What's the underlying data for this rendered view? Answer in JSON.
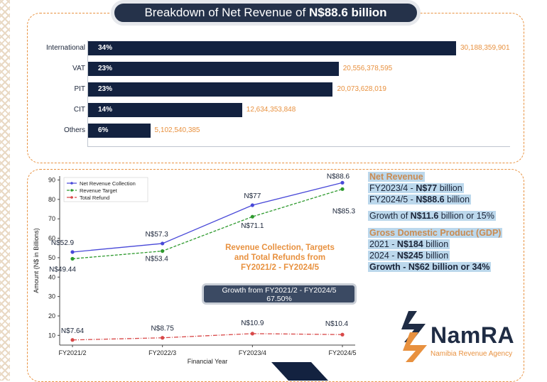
{
  "header": {
    "title_prefix": "Breakdown of Net Revenue of ",
    "title_bold": "N$88.6 billion"
  },
  "breakdown": {
    "items": [
      {
        "label": "International",
        "pct": "34%",
        "value": "30,188,359,901",
        "amount": 30188359901
      },
      {
        "label": "VAT",
        "pct": "23%",
        "value": "20,556,378,595",
        "amount": 20556378595
      },
      {
        "label": "PIT",
        "pct": "23%",
        "value": "20,073,628,019",
        "amount": 20073628019
      },
      {
        "label": "CIT",
        "pct": "14%",
        "value": "12,634,353,848",
        "amount": 12634353848
      },
      {
        "label": "Others",
        "pct": "6%",
        "value": "5,102,540,385",
        "amount": 5102540385
      }
    ],
    "bar_color": "#132240",
    "value_color": "#e8913f"
  },
  "chart_data": [
    {
      "type": "bar",
      "orientation": "horizontal",
      "categories": [
        "International",
        "VAT",
        "PIT",
        "CIT",
        "Others"
      ],
      "values": [
        30188359901,
        20556378595,
        20073628019,
        12634353848,
        5102540385
      ],
      "percent_labels": [
        "34%",
        "23%",
        "23%",
        "14%",
        "6%"
      ],
      "title": "Breakdown of Net Revenue of N$88.6 billion"
    },
    {
      "type": "line",
      "x": [
        "FY2021/2",
        "FY2022/3",
        "FY2023/4",
        "FY2024/5"
      ],
      "xlabel": "Financial Year",
      "ylabel": "Amount (N$ in Billions)",
      "ylim": [
        5,
        92
      ],
      "yticks": [
        10,
        20,
        30,
        40,
        50,
        60,
        70,
        80,
        90
      ],
      "grid": false,
      "legend": "top-left",
      "series": [
        {
          "name": "Net Revenue Collection",
          "values": [
            52.9,
            57.3,
            77,
            88.6
          ],
          "labels": [
            "N$52.9",
            "N$57.3",
            "N$77",
            "N$88.6"
          ],
          "color": "#4848d8",
          "style": "solid"
        },
        {
          "name": "Revenue Target",
          "values": [
            49.44,
            53.4,
            71.1,
            85.3
          ],
          "labels": [
            "N$49.44",
            "N$53.4",
            "N$71.1",
            "N$85.3"
          ],
          "color": "#2e9a2e",
          "style": "dashed"
        },
        {
          "name": "Total Refund",
          "values": [
            7.64,
            8.75,
            10.9,
            10.4
          ],
          "labels": [
            "N$7.64",
            "N$8.75",
            "N$10.9",
            "N$10.4"
          ],
          "color": "#d84848",
          "style": "dashdot"
        }
      ]
    }
  ],
  "annotations": {
    "chart_title_lines": [
      "Revenue Collection, Targets",
      "and Total Refunds from",
      "FY2021/2 - FY2024/5"
    ],
    "growth_box_line1": "Growth from FY2021/2 - FY2024/5",
    "growth_box_line2": "67.50%"
  },
  "info_panel": {
    "net_revenue_heading": "Net Revenue",
    "nr_line1_prefix": "FY2023/4 - ",
    "nr_line1_bold": "N$77",
    "nr_line1_suffix": " billion",
    "nr_line2_prefix": "FY2024/5 - ",
    "nr_line2_bold": "N$88.6",
    "nr_line2_suffix": " billion",
    "growth_prefix": "Growth of ",
    "growth_bold": "N$11.6",
    "growth_suffix": " billion or 15%",
    "gdp_heading": "Gross Domestic Product (GDP)",
    "gdp_line1_prefix": "2021 - ",
    "gdp_line1_bold": "N$184",
    "gdp_line1_suffix": " billion",
    "gdp_line2_prefix": "2024 - ",
    "gdp_line2_bold": "N$245",
    "gdp_line2_suffix": " billion",
    "gdp_growth": "Growth - N$62 billion or 34%"
  },
  "logo": {
    "name": "NamRA",
    "subtitle": "Namibia Revenue Agency",
    "colors": [
      "#e8913f",
      "#1f2c44"
    ]
  }
}
